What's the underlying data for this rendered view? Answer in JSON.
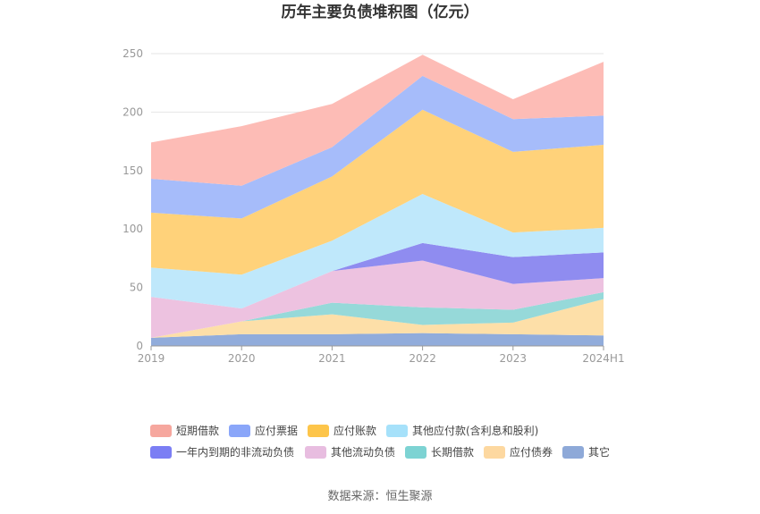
{
  "chart_data": {
    "type": "area",
    "stacked": true,
    "title": "历年主要负债堆积图（亿元）",
    "categories": [
      "2019",
      "2020",
      "2021",
      "2022",
      "2023",
      "2024H1"
    ],
    "ylim": [
      0,
      250
    ],
    "yticks": [
      0,
      50,
      100,
      150,
      200,
      250
    ],
    "xlabel": "",
    "ylabel": "",
    "source": "数据来源：恒生聚源",
    "series": [
      {
        "name": "其它",
        "color": "#91acdb",
        "values": [
          7,
          10,
          10,
          11,
          10,
          9
        ]
      },
      {
        "name": "应付债券",
        "color": "#fddfa8",
        "values": [
          0,
          11,
          17,
          7,
          10,
          31
        ]
      },
      {
        "name": "长期借款",
        "color": "#96d9d9",
        "values": [
          0,
          0,
          10,
          15,
          11,
          6
        ]
      },
      {
        "name": "其他流动负债",
        "color": "#edc2e0",
        "values": [
          35,
          11,
          27,
          40,
          22,
          12
        ]
      },
      {
        "name": "一年内到期的非流动负债",
        "color": "#8f8cf0",
        "values": [
          0,
          0,
          0,
          15,
          23,
          22
        ]
      },
      {
        "name": "其他应付款(含利息和股利)",
        "color": "#bfe8fb",
        "values": [
          25,
          29,
          26,
          42,
          21,
          21
        ]
      },
      {
        "name": "应付账款",
        "color": "#ffd27a",
        "values": [
          47,
          48,
          55,
          72,
          69,
          71
        ]
      },
      {
        "name": "应付票据",
        "color": "#a6bcfa",
        "values": [
          29,
          28,
          25,
          29,
          28,
          25
        ]
      },
      {
        "name": "短期借款",
        "color": "#fdbcb6",
        "values": [
          31,
          51,
          37,
          18,
          17,
          46
        ]
      }
    ],
    "legend": [
      {
        "name": "短期借款",
        "color": "#f6a79e"
      },
      {
        "name": "应付票据",
        "color": "#8aa6f9"
      },
      {
        "name": "应付账款",
        "color": "#fdc54a"
      },
      {
        "name": "其他应付款(含利息和股利)",
        "color": "#a6e1fa"
      },
      {
        "name": "一年内到期的非流动负债",
        "color": "#7b7ef4"
      },
      {
        "name": "其他流动负债",
        "color": "#e8bde0"
      },
      {
        "name": "长期借款",
        "color": "#7dd3d3"
      },
      {
        "name": "应付债券",
        "color": "#fdd8a0"
      },
      {
        "name": "其它",
        "color": "#8ea9d8"
      }
    ]
  }
}
